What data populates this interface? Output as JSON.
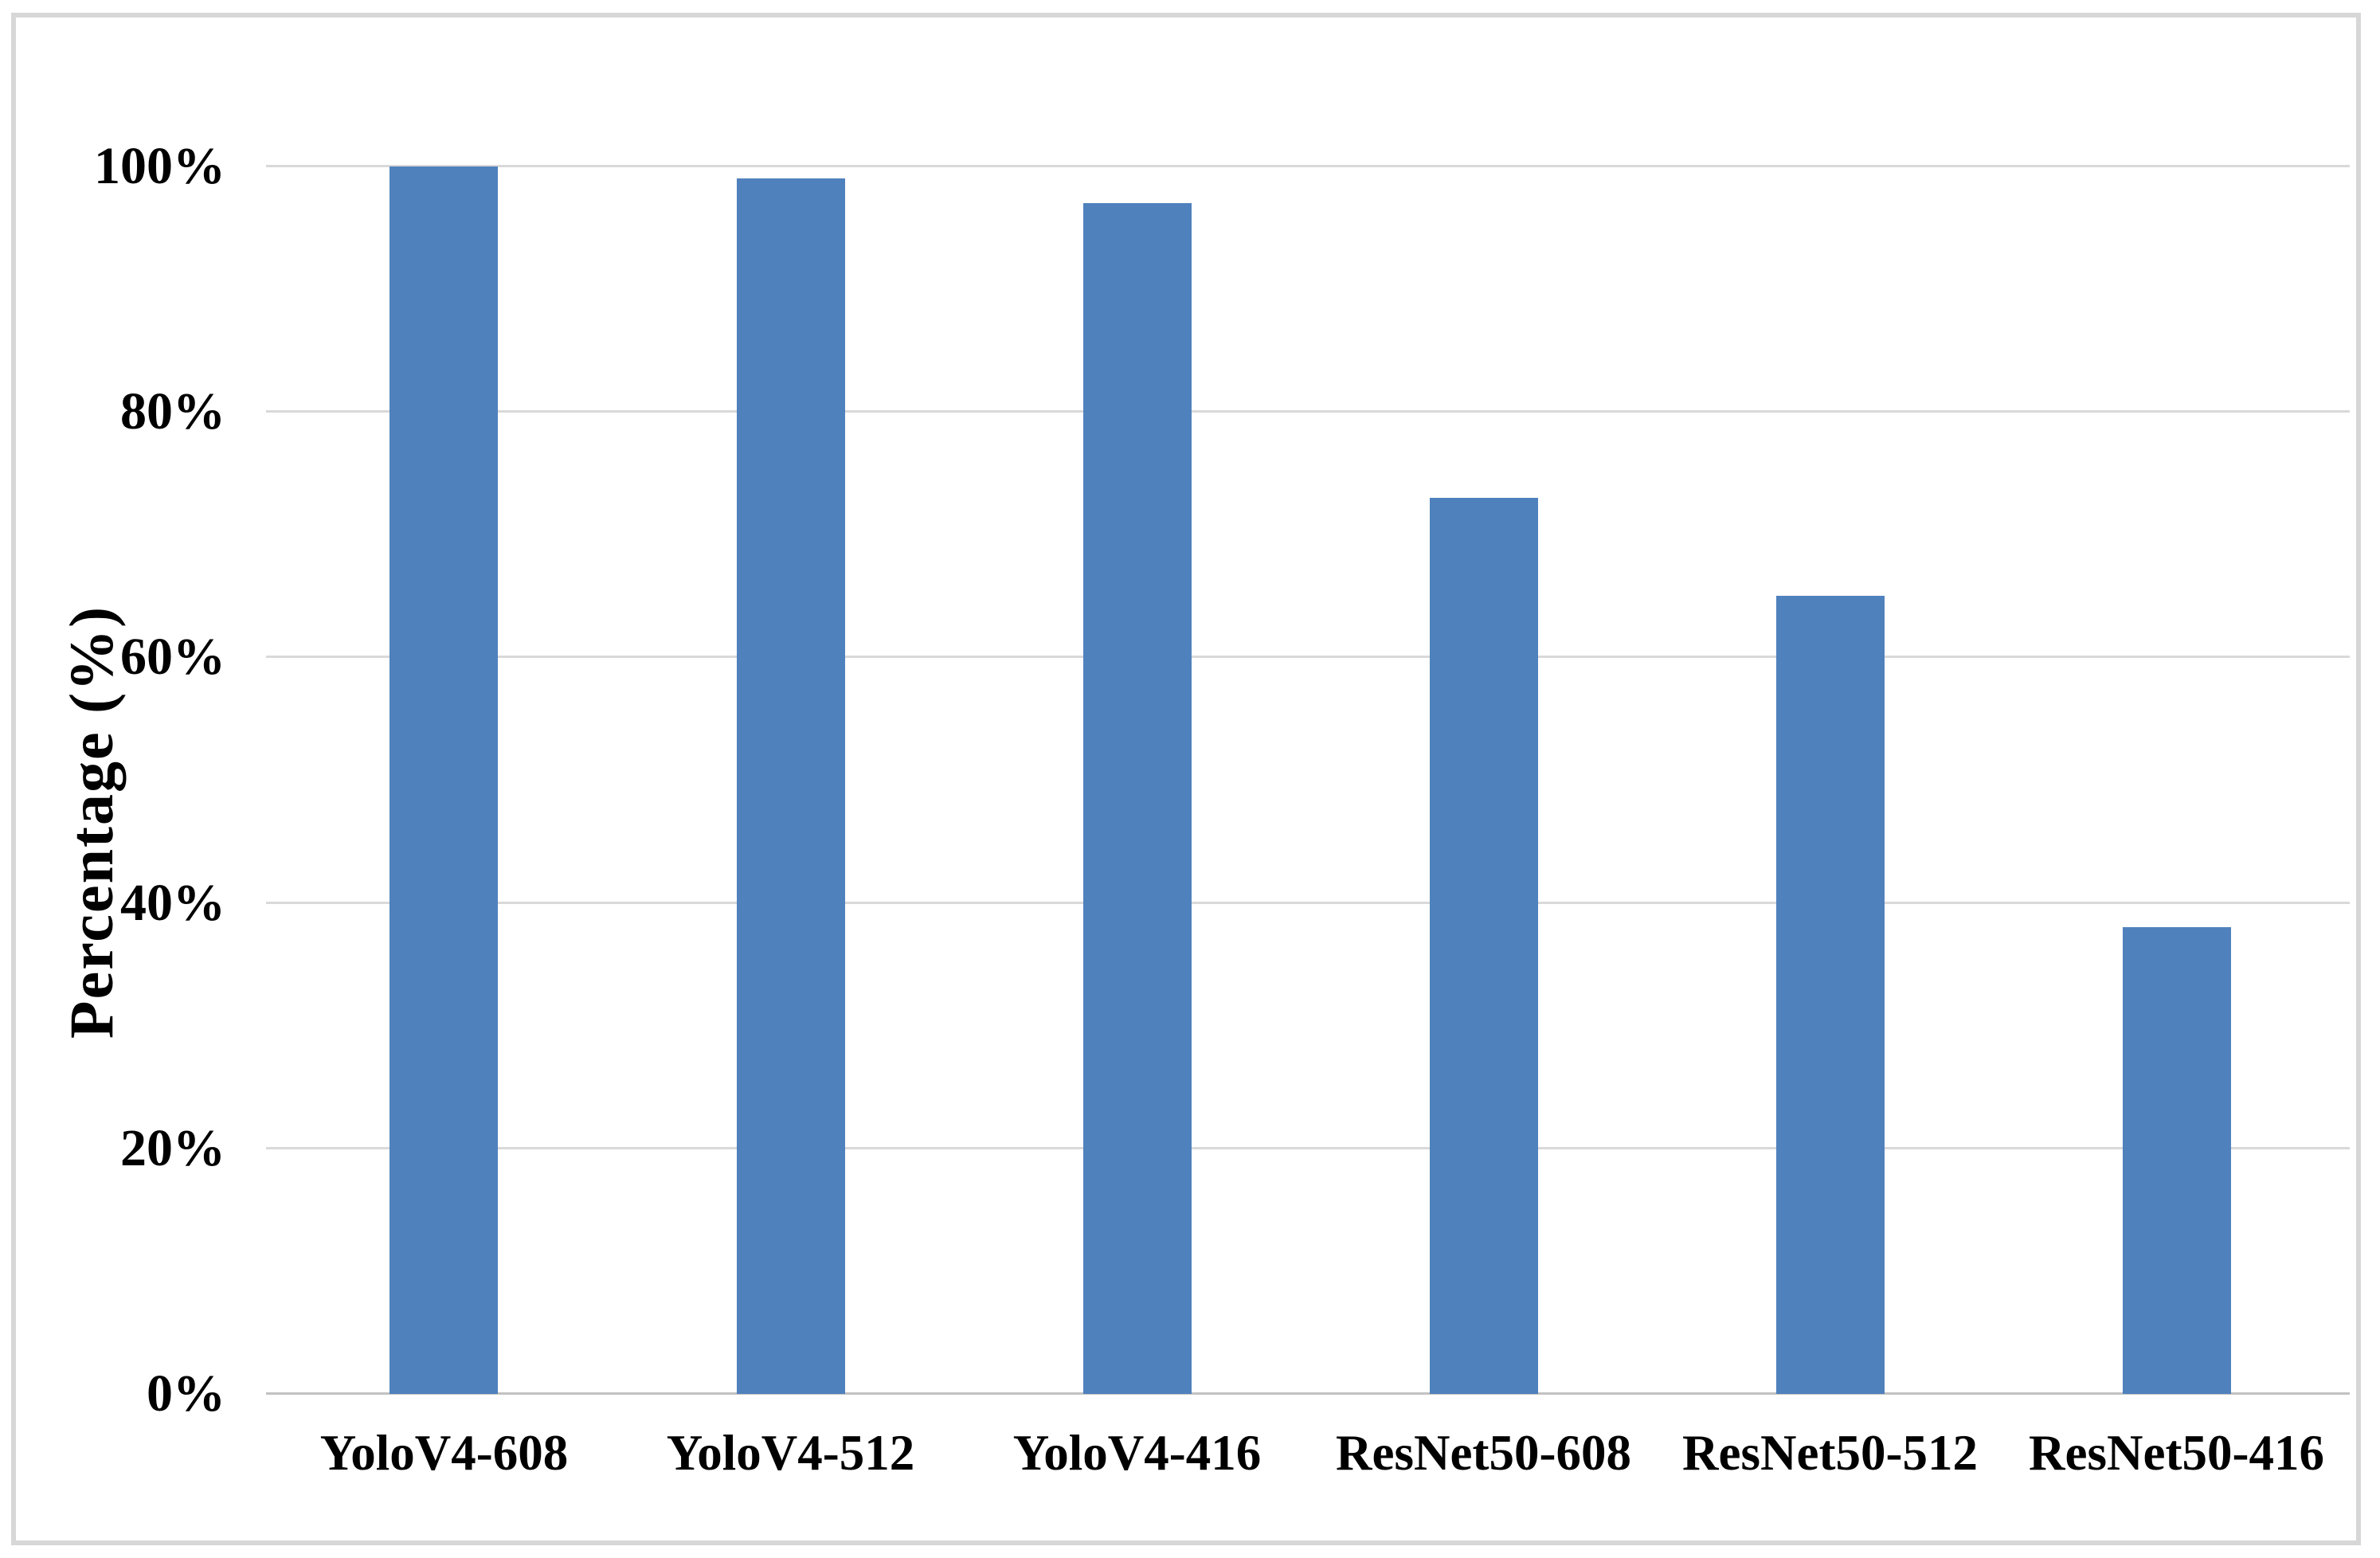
{
  "chart_data": {
    "type": "bar",
    "title": "",
    "categories": [
      "YoloV4-608",
      "YoloV4-512",
      "YoloV4-416",
      "ResNet50-608",
      "ResNet50-512",
      "ResNet50-416"
    ],
    "values": [
      100,
      99,
      97,
      73,
      65,
      38
    ],
    "xlabel": "",
    "ylabel": "Percentage (%)",
    "ylim": [
      0,
      100
    ],
    "yticks": [
      {
        "value": 0,
        "label": "0%"
      },
      {
        "value": 20,
        "label": "20%"
      },
      {
        "value": 40,
        "label": "40%"
      },
      {
        "value": 60,
        "label": "60%"
      },
      {
        "value": 80,
        "label": "80%"
      },
      {
        "value": 100,
        "label": "100%"
      }
    ],
    "grid": "horizontal-only",
    "legend": "none",
    "bar_color": "#4f81bd",
    "gridline_color": "#d9d9d9",
    "zero_axis_color": "#c2c2c2",
    "frame_border_color": "#d7d7d7",
    "text_color": "#000000"
  }
}
